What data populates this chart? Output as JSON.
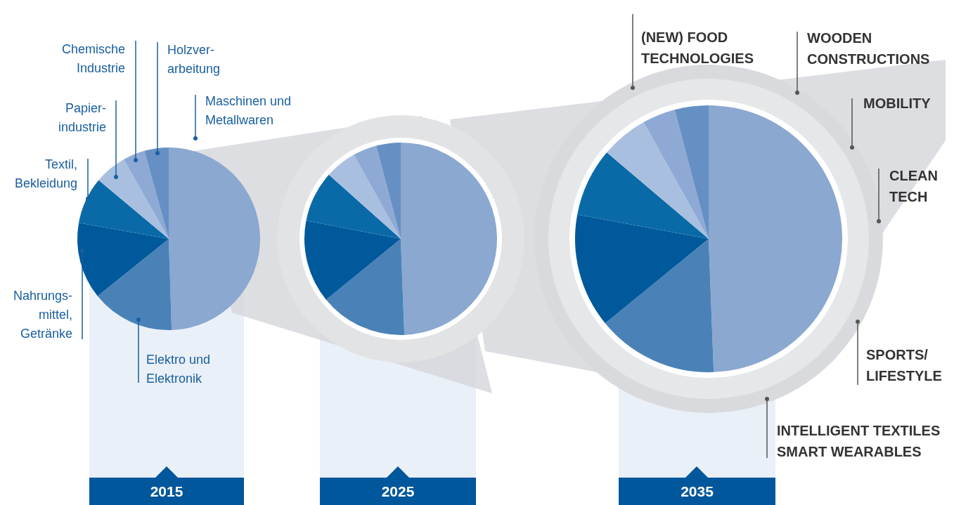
{
  "chart_data": [
    {
      "type": "pie",
      "title": "2015",
      "categories": [
        "Maschinen und\nMetallwaren",
        "Elektro und\nElektronik",
        "Nahrungs-\nmittel,\nGetränke",
        "Textil,\nBekleidung",
        "Papier-\nindustrie",
        "Chemische\nIndustrie",
        "Holzver-\narbeitung"
      ],
      "values": [
        49.5,
        14.7,
        13.6,
        8.3,
        5.7,
        3.9,
        4.3
      ],
      "colors": [
        "#8aa8d0",
        "#4a82b8",
        "#00599a",
        "#0a6aa8",
        "#a8bfe0",
        "#8eaad4",
        "#6690c4"
      ]
    },
    {
      "type": "pie",
      "title": "2025",
      "categories": [
        null,
        null,
        null,
        null,
        null,
        null,
        null
      ],
      "values": [
        49.4,
        14.7,
        13.9,
        8.6,
        5.3,
        4.0,
        4.1
      ],
      "colors": [
        "#8aa8d0",
        "#4a82b8",
        "#00599a",
        "#0a6aa8",
        "#a8bfe0",
        "#8eaad4",
        "#6690c4"
      ]
    },
    {
      "type": "pie",
      "title": "2035",
      "categories": [
        null,
        null,
        null,
        null,
        null,
        null,
        null
      ],
      "values": [
        49.4,
        14.7,
        13.8,
        8.3,
        5.7,
        4.0,
        4.1
      ],
      "colors": [
        "#8aa8d0",
        "#4a82b8",
        "#00599a",
        "#0a6aa8",
        "#a8bfe0",
        "#8eaad4",
        "#6690c4"
      ],
      "annotations": [
        "(NEW) FOOD\nTECHNOLOGIES",
        "WOODEN\nCONSTRUCTIONS",
        "MOBILITY",
        "CLEAN\nTECH",
        "SPORTS/\nLIFESTYLE",
        "INTELLIGENT TEXTILES\nSMART WEARABLES"
      ]
    }
  ]
}
